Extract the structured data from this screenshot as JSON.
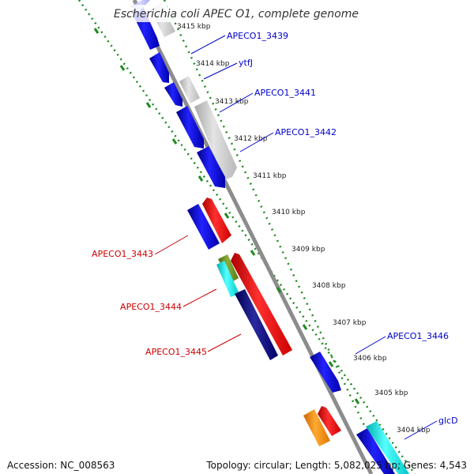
{
  "title": "Escherichia coli APEC O1, complete genome",
  "footer": {
    "accession": "Accession: NC_008563",
    "summary": "Topology: circular; Length: 5,082,025 bp; Genes: 4,543"
  },
  "colors": {
    "forward_gene": "#1a1aee",
    "reverse_gene": "#ee1a1a",
    "pseudo": "#c8c8c8",
    "backbone": "#8c8c8c",
    "tick": "#1f8a1f",
    "forward_label": "#0000cc",
    "reverse_label": "#cc0000",
    "cyan_feature": "#22dddd",
    "orange_feature": "#ff8c00",
    "navy_feature": "#1a1a80",
    "olive_feature": "#6b8e23"
  },
  "ticks": [
    {
      "label": "3415 kbp"
    },
    {
      "label": "3414 kbp"
    },
    {
      "label": "3413 kbp"
    },
    {
      "label": "3412 kbp"
    },
    {
      "label": "3411 kbp"
    },
    {
      "label": "3410 kbp"
    },
    {
      "label": "3409 kbp"
    },
    {
      "label": "3408 kbp"
    },
    {
      "label": "3407 kbp"
    },
    {
      "label": "3406 kbp"
    },
    {
      "label": "3405 kbp"
    },
    {
      "label": "3404 kbp"
    }
  ],
  "gene_labels": [
    {
      "text": "APECO1_3439",
      "strand": "forward"
    },
    {
      "text": "ytfJ",
      "strand": "forward"
    },
    {
      "text": "APECO1_3441",
      "strand": "forward"
    },
    {
      "text": "APECO1_3442",
      "strand": "forward"
    },
    {
      "text": "APECO1_3443",
      "strand": "reverse"
    },
    {
      "text": "APECO1_3444",
      "strand": "reverse"
    },
    {
      "text": "APECO1_3445",
      "strand": "reverse"
    },
    {
      "text": "APECO1_3446",
      "strand": "forward"
    },
    {
      "text": "glcD",
      "strand": "forward"
    }
  ]
}
